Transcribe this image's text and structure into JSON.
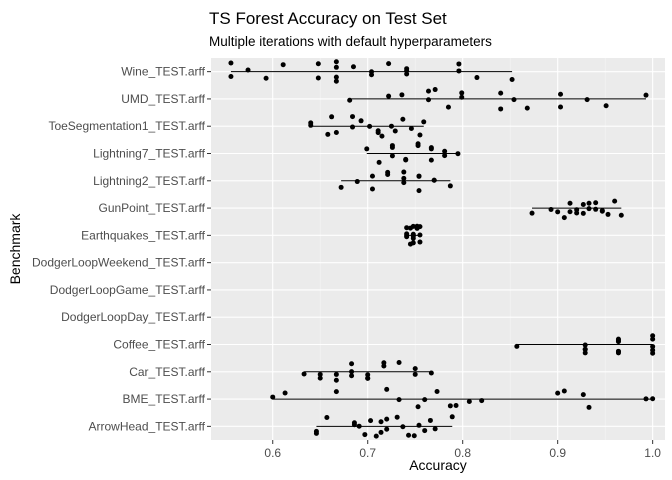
{
  "chart_data": {
    "type": "scatter",
    "title": "TS Forest Accuracy on Test Set",
    "subtitle": "Multiple iterations with default hyperparameters",
    "xlabel": "Accuracy",
    "ylabel": "Benchmark",
    "xlim": [
      0.535,
      1.013
    ],
    "xticks": [
      0.6,
      0.7,
      0.8,
      0.9,
      1.0
    ],
    "xtick_labels": [
      "0.6",
      "0.7",
      "0.8",
      "0.9",
      "1.0"
    ],
    "grid": true,
    "background": "#ebebeb",
    "categories": [
      "Wine_TEST.arff",
      "UMD_TEST.arff",
      "ToeSegmentation1_TEST.arff",
      "Lightning7_TEST.arff",
      "Lightning2_TEST.arff",
      "GunPoint_TEST.arff",
      "Earthquakes_TEST.arff",
      "DodgerLoopWeekend_TEST.arff",
      "DodgerLoopGame_TEST.arff",
      "DodgerLoopDay_TEST.arff",
      "Coffee_TEST.arff",
      "Car_TEST.arff",
      "BME_TEST.arff",
      "ArrowHead_TEST.arff"
    ],
    "ranges": [
      [
        0.556,
        0.852
      ],
      [
        0.681,
        0.993
      ],
      [
        0.64,
        0.759
      ],
      [
        0.699,
        0.795
      ],
      [
        0.672,
        0.787
      ],
      [
        0.873,
        0.967
      ],
      [
        0.741,
        0.755
      ],
      null,
      null,
      null,
      [
        0.857,
        1.0
      ],
      [
        0.633,
        0.767
      ],
      [
        0.6,
        1.0
      ],
      [
        0.646,
        0.789
      ]
    ],
    "points": [
      [
        0.556,
        0.556,
        0.574,
        0.593,
        0.611,
        0.648,
        0.648,
        0.667,
        0.667,
        0.667,
        0.667,
        0.685,
        0.704,
        0.704,
        0.722,
        0.741,
        0.741,
        0.741,
        0.796,
        0.796,
        0.815,
        0.852
      ],
      [
        0.681,
        0.722,
        0.736,
        0.764,
        0.764,
        0.771,
        0.785,
        0.799,
        0.799,
        0.84,
        0.84,
        0.854,
        0.868,
        0.903,
        0.903,
        0.931,
        0.951,
        0.993
      ],
      [
        0.64,
        0.64,
        0.658,
        0.662,
        0.667,
        0.684,
        0.684,
        0.693,
        0.702,
        0.711,
        0.711,
        0.715,
        0.725,
        0.729,
        0.737,
        0.746,
        0.755,
        0.759
      ],
      [
        0.699,
        0.712,
        0.726,
        0.726,
        0.726,
        0.74,
        0.74,
        0.753,
        0.753,
        0.767,
        0.767,
        0.767,
        0.781,
        0.781,
        0.795
      ],
      [
        0.672,
        0.689,
        0.705,
        0.705,
        0.721,
        0.721,
        0.738,
        0.738,
        0.738,
        0.754,
        0.754,
        0.754,
        0.77,
        0.77,
        0.787
      ],
      [
        0.873,
        0.893,
        0.9,
        0.907,
        0.913,
        0.913,
        0.92,
        0.92,
        0.927,
        0.927,
        0.933,
        0.933,
        0.94,
        0.94,
        0.947,
        0.947,
        0.953,
        0.96,
        0.967
      ],
      [
        0.741,
        0.741,
        0.741,
        0.741,
        0.745,
        0.745,
        0.748,
        0.748,
        0.748,
        0.748,
        0.748,
        0.752,
        0.752,
        0.752,
        0.752,
        0.755,
        0.755,
        0.755
      ],
      [],
      [],
      [],
      [
        0.857,
        0.929,
        0.929,
        0.929,
        0.929,
        0.964,
        0.964,
        0.964,
        0.964,
        0.964,
        0.964,
        1.0,
        1.0,
        1.0,
        1.0,
        1.0
      ],
      [
        0.633,
        0.65,
        0.65,
        0.667,
        0.667,
        0.683,
        0.683,
        0.683,
        0.7,
        0.7,
        0.7,
        0.717,
        0.717,
        0.733,
        0.75,
        0.75,
        0.767
      ],
      [
        0.6,
        0.613,
        0.667,
        0.72,
        0.733,
        0.753,
        0.76,
        0.773,
        0.787,
        0.793,
        0.807,
        0.82,
        0.9,
        0.907,
        0.927,
        0.933,
        0.993,
        1.0
      ],
      [
        0.646,
        0.646,
        0.657,
        0.686,
        0.686,
        0.691,
        0.697,
        0.703,
        0.709,
        0.714,
        0.714,
        0.72,
        0.72,
        0.731,
        0.737,
        0.743,
        0.749,
        0.754,
        0.76,
        0.766,
        0.771,
        0.789
      ]
    ]
  }
}
